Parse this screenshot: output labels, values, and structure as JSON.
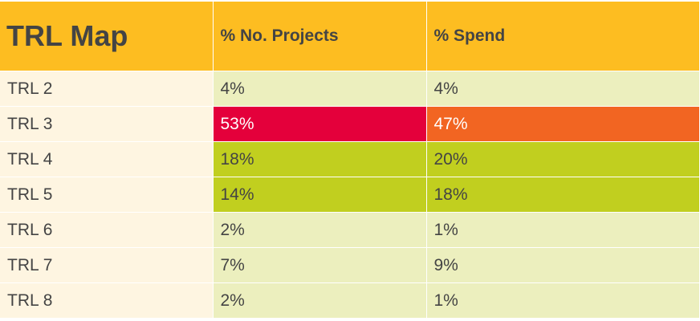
{
  "title": "TRL Map",
  "columns": [
    "% No. Projects",
    "% Spend"
  ],
  "colors": {
    "header": "#fdbd21",
    "label_bg": "#fef5e1",
    "low": "#ecefbe",
    "mid": "#c1cf1f",
    "high_orange": "#f26522",
    "high_red": "#e4003b"
  },
  "rows": [
    {
      "label": "TRL 2",
      "projects": "4%",
      "spend": "4%",
      "projects_color": "#ecefbe",
      "spend_color": "#ecefbe"
    },
    {
      "label": "TRL 3",
      "projects": "53%",
      "spend": "47%",
      "projects_color": "#e4003b",
      "spend_color": "#f26522"
    },
    {
      "label": "TRL 4",
      "projects": "18%",
      "spend": "20%",
      "projects_color": "#c1cf1f",
      "spend_color": "#c1cf1f"
    },
    {
      "label": "TRL 5",
      "projects": "14%",
      "spend": "18%",
      "projects_color": "#c1cf1f",
      "spend_color": "#c1cf1f"
    },
    {
      "label": "TRL 6",
      "projects": "2%",
      "spend": "1%",
      "projects_color": "#ecefbe",
      "spend_color": "#ecefbe"
    },
    {
      "label": "TRL 7",
      "projects": "7%",
      "spend": "9%",
      "projects_color": "#ecefbe",
      "spend_color": "#ecefbe"
    },
    {
      "label": "TRL 8",
      "projects": "2%",
      "spend": "1%",
      "projects_color": "#ecefbe",
      "spend_color": "#ecefbe"
    }
  ]
}
